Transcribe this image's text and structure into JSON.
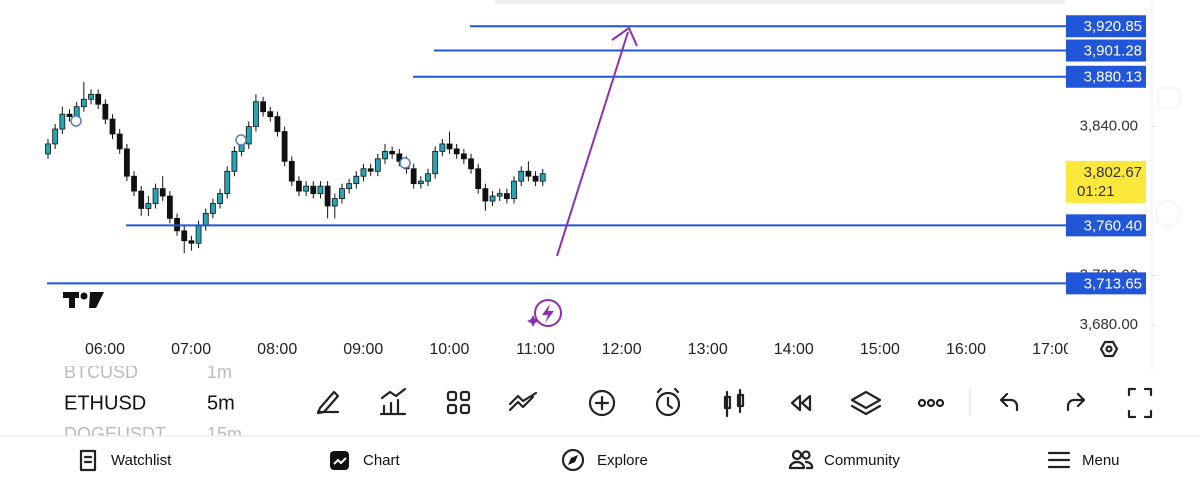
{
  "chart_data": {
    "type": "candlestick",
    "ylim": [
      3668,
      3942
    ],
    "open": [
      3818,
      3826,
      3838,
      3850,
      3848,
      3856,
      3862,
      3866,
      3858,
      3846,
      3834,
      3822,
      3800,
      3788,
      3774,
      3778,
      3790,
      3784,
      3766,
      3756,
      3748,
      3746,
      3760,
      3770,
      3778,
      3786,
      3804,
      3820,
      3826,
      3840,
      3860,
      3852,
      3848,
      3836,
      3812,
      3796,
      3788,
      3792,
      3786,
      3792,
      3776,
      3782,
      3790,
      3794,
      3800,
      3806,
      3804,
      3814,
      3820,
      3818,
      3812,
      3806,
      3794,
      3796,
      3802,
      3820,
      3826,
      3822,
      3818,
      3814,
      3806,
      3790,
      3780,
      3784,
      3786,
      3782,
      3796,
      3804,
      3800,
      3796
    ],
    "high": [
      3830,
      3842,
      3856,
      3854,
      3860,
      3876,
      3870,
      3870,
      3862,
      3850,
      3838,
      3826,
      3804,
      3792,
      3784,
      3794,
      3800,
      3788,
      3770,
      3760,
      3752,
      3764,
      3774,
      3782,
      3790,
      3808,
      3824,
      3830,
      3844,
      3866,
      3864,
      3856,
      3852,
      3840,
      3816,
      3800,
      3796,
      3796,
      3796,
      3796,
      3786,
      3794,
      3798,
      3804,
      3810,
      3810,
      3818,
      3826,
      3824,
      3822,
      3816,
      3810,
      3800,
      3806,
      3824,
      3830,
      3836,
      3826,
      3822,
      3818,
      3810,
      3794,
      3788,
      3790,
      3790,
      3800,
      3808,
      3812,
      3804,
      3806
    ],
    "low": [
      3814,
      3822,
      3834,
      3844,
      3844,
      3852,
      3858,
      3854,
      3842,
      3830,
      3818,
      3796,
      3784,
      3768,
      3768,
      3774,
      3780,
      3762,
      3752,
      3738,
      3740,
      3742,
      3756,
      3766,
      3774,
      3782,
      3800,
      3816,
      3822,
      3836,
      3848,
      3844,
      3832,
      3808,
      3792,
      3784,
      3784,
      3782,
      3782,
      3766,
      3766,
      3778,
      3786,
      3790,
      3796,
      3800,
      3800,
      3810,
      3814,
      3808,
      3802,
      3790,
      3790,
      3792,
      3798,
      3816,
      3818,
      3814,
      3810,
      3802,
      3786,
      3772,
      3776,
      3780,
      3778,
      3778,
      3792,
      3796,
      3792,
      3792
    ],
    "close": [
      3826,
      3838,
      3850,
      3848,
      3856,
      3862,
      3866,
      3858,
      3846,
      3834,
      3822,
      3800,
      3788,
      3774,
      3778,
      3790,
      3784,
      3766,
      3756,
      3748,
      3746,
      3760,
      3770,
      3778,
      3786,
      3804,
      3820,
      3826,
      3840,
      3860,
      3852,
      3848,
      3836,
      3812,
      3796,
      3788,
      3792,
      3786,
      3792,
      3776,
      3782,
      3790,
      3794,
      3800,
      3806,
      3804,
      3814,
      3820,
      3818,
      3812,
      3806,
      3794,
      3796,
      3802,
      3820,
      3826,
      3822,
      3818,
      3814,
      3806,
      3790,
      3780,
      3784,
      3786,
      3782,
      3796,
      3804,
      3800,
      3796,
      3802
    ],
    "color_up": "#26a6b4",
    "color_down": "#111111",
    "yticks": [
      {
        "value": 3840,
        "label": "3,840.00"
      },
      {
        "value": 3720,
        "label": "3,720.00"
      },
      {
        "value": 3680,
        "label": "3,680.00"
      }
    ],
    "levels": [
      {
        "value": 3920.85,
        "label": "3,920.85"
      },
      {
        "value": 3901.28,
        "label": "3,901.28"
      },
      {
        "value": 3880.13,
        "label": "3,880.13"
      },
      {
        "value": 3760.4,
        "label": "3,760.40"
      },
      {
        "value": 3713.65,
        "label": "3,713.65"
      }
    ],
    "level_color": "#2156d9",
    "current_price": {
      "value": 3802.67,
      "label": "3,802.67"
    },
    "countdown": "01:21",
    "xticks": [
      "06:00",
      "07:00",
      "08:00",
      "09:00",
      "10:00",
      "11:00",
      "12:00",
      "13:00",
      "14:00",
      "15:00",
      "16:00",
      "17:00"
    ]
  },
  "symbols": [
    {
      "name": "BTCUSD",
      "interval": "1m"
    },
    {
      "name": "ETHUSD",
      "interval": "5m"
    },
    {
      "name": "DOGEUSDT",
      "interval": "15m"
    }
  ],
  "nav": [
    "Watchlist",
    "Chart",
    "Explore",
    "Community",
    "Menu"
  ]
}
